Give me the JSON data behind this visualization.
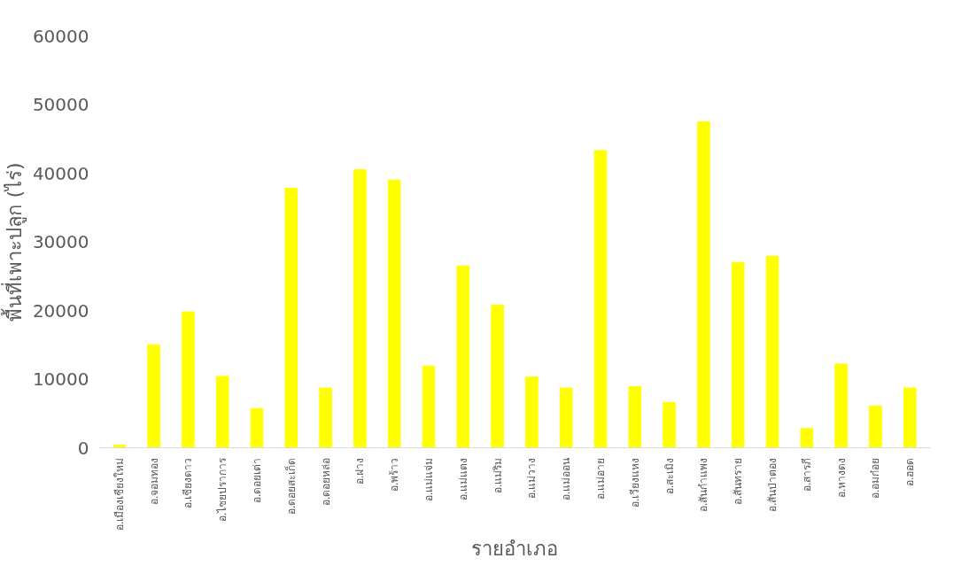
{
  "chart_data": {
    "type": "bar",
    "xlabel": "รายอำเภอ",
    "ylabel": "พื้นที่เพาะปลูก (ไร่)",
    "categories": [
      "อ.เมืองเชียงใหม่",
      "อ.จอมทอง",
      "อ.เชียงดาว",
      "อ.ไชยปราการ",
      "อ.ดอยเต่า",
      "อ.ดอยสะเก็ด",
      "อ.ดอยหล่อ",
      "อ.ฝาง",
      "อ.พร้าว",
      "อ.แม่แจ่ม",
      "อ.แม่แตง",
      "อ.แม่ริม",
      "อ.แม่วาง",
      "อ.แม่ออน",
      "อ.แม่อาย",
      "อ.เวียงแหง",
      "อ.สะเมิง",
      "อ.สันกำแพง",
      "อ.สันทราย",
      "อ.สันป่าตอง",
      "อ.สารภี",
      "อ.หางดง",
      "อ.อมก๋อย",
      "อ.ฮอด"
    ],
    "values": [
      400,
      15000,
      19800,
      10400,
      5700,
      37800,
      8700,
      40500,
      39000,
      11900,
      26500,
      20800,
      10300,
      8700,
      43300,
      8900,
      6600,
      47500,
      27000,
      27900,
      2800,
      12200,
      6100,
      8700
    ],
    "color": "#ffff00",
    "ylim": [
      0,
      60000
    ],
    "yticks": [
      0,
      10000,
      20000,
      30000,
      40000,
      50000,
      60000
    ],
    "grid": false
  }
}
